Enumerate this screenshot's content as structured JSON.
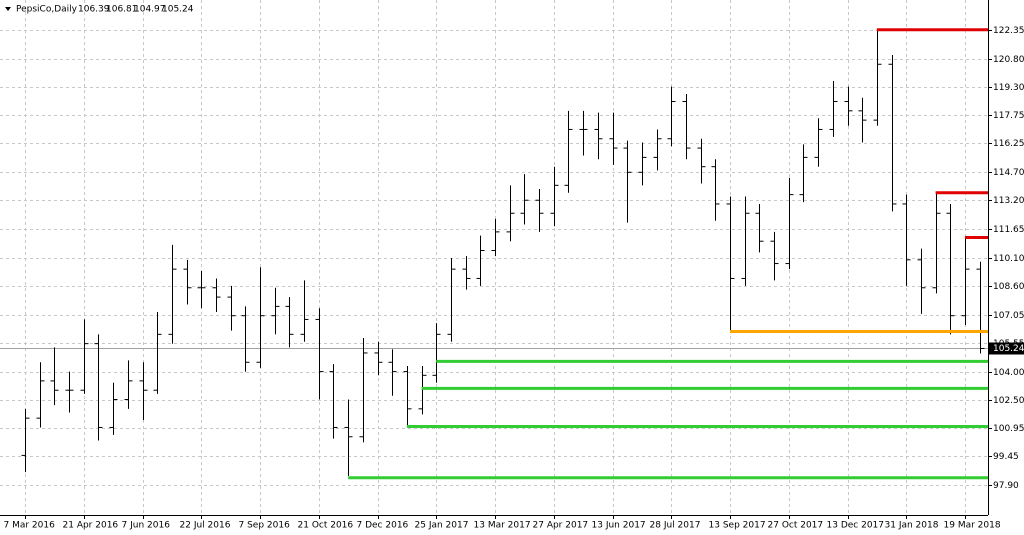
{
  "chart_data": {
    "type": "ohlc",
    "title": "PepsiCo,Daily",
    "header_values": [
      106.39,
      106.81,
      104.97,
      105.24
    ],
    "categories": [
      "7 Mar 2016",
      null,
      null,
      null,
      "21 Apr 2016",
      null,
      null,
      null,
      "7 Jun 2016",
      null,
      null,
      null,
      "22 Jul 2016",
      null,
      null,
      null,
      "7 Sep 2016",
      null,
      null,
      null,
      "21 Oct 2016",
      null,
      null,
      null,
      "7 Dec 2016",
      null,
      null,
      null,
      "25 Jan 2017",
      null,
      null,
      null,
      "13 Mar 2017",
      null,
      null,
      null,
      "27 Apr 2017",
      null,
      null,
      null,
      "13 Jun 2017",
      null,
      null,
      null,
      "28 Jul 2017",
      null,
      null,
      null,
      "13 Sep 2017",
      null,
      null,
      null,
      "27 Oct 2017",
      null,
      null,
      null,
      "13 Dec 2017",
      null,
      null,
      null,
      "31 Jan 2018",
      null,
      null,
      null,
      "19 Mar 2018",
      null
    ],
    "ohlc": [
      [
        99.5,
        102,
        98.6,
        101.5
      ],
      [
        101.5,
        104.5,
        101,
        103.5
      ],
      [
        103.5,
        105.3,
        102.2,
        103
      ],
      [
        103,
        104,
        101.8,
        103
      ],
      [
        103,
        106.8,
        102.8,
        105.5
      ],
      [
        105.5,
        106,
        100.3,
        101
      ],
      [
        101,
        103.4,
        100.6,
        102.5
      ],
      [
        102.5,
        104.6,
        102,
        103.5
      ],
      [
        103.5,
        104.5,
        101.4,
        103
      ],
      [
        103,
        107.2,
        102.8,
        106
      ],
      [
        106,
        110.8,
        105.5,
        109.5
      ],
      [
        109.5,
        110,
        107.6,
        108.5
      ],
      [
        108.5,
        109.4,
        107.4,
        108.5
      ],
      [
        108.5,
        109,
        107.2,
        108
      ],
      [
        108,
        108.6,
        106.2,
        107
      ],
      [
        107,
        107.5,
        104,
        104.5
      ],
      [
        104.5,
        109.6,
        104.2,
        107
      ],
      [
        107,
        108.5,
        106,
        107.5
      ],
      [
        107.5,
        108,
        105.3,
        106
      ],
      [
        106,
        108.9,
        105.6,
        106.8
      ],
      [
        106.8,
        107.4,
        102.5,
        104
      ],
      [
        104,
        104.4,
        100.4,
        101
      ],
      [
        101,
        102.5,
        98.4,
        100.5
      ],
      [
        100.5,
        105.8,
        100.2,
        105
      ],
      [
        105,
        105.6,
        103.8,
        104.5
      ],
      [
        104.5,
        105.2,
        102.7,
        104
      ],
      [
        104,
        104.3,
        101,
        102
      ],
      [
        102,
        104.3,
        101.7,
        103.8
      ],
      [
        103.8,
        106.6,
        103.4,
        106
      ],
      [
        106,
        110.1,
        105.6,
        109.5
      ],
      [
        109.5,
        110.2,
        108.4,
        109
      ],
      [
        109,
        111.3,
        108.6,
        110.5
      ],
      [
        110.5,
        112.2,
        110.2,
        111.5
      ],
      [
        111.5,
        114,
        111,
        112.5
      ],
      [
        112.5,
        114.6,
        111.9,
        113.2
      ],
      [
        113.2,
        113.8,
        111.5,
        112.5
      ],
      [
        112.5,
        115,
        111.8,
        114
      ],
      [
        114,
        118,
        113.6,
        117
      ],
      [
        117,
        118,
        115.6,
        117
      ],
      [
        117,
        117.9,
        115.4,
        116.5
      ],
      [
        116.5,
        117.9,
        115.1,
        116
      ],
      [
        116,
        116.4,
        112,
        114.7
      ],
      [
        114.7,
        116.3,
        114,
        115.5
      ],
      [
        115.5,
        117,
        114.8,
        116.5
      ],
      [
        116.5,
        119.3,
        116.1,
        118.5
      ],
      [
        118.5,
        118.9,
        115.4,
        116
      ],
      [
        116,
        116.5,
        114.1,
        115
      ],
      [
        115,
        115.4,
        112.1,
        113
      ],
      [
        113,
        113.4,
        106.2,
        109
      ],
      [
        109,
        113.4,
        108.6,
        112.5
      ],
      [
        112.5,
        113,
        110.4,
        111
      ],
      [
        111,
        111.5,
        108.9,
        109.8
      ],
      [
        109.8,
        114.4,
        109.5,
        113.5
      ],
      [
        113.5,
        116.2,
        113.1,
        115.5
      ],
      [
        115.5,
        117.6,
        115,
        117
      ],
      [
        117,
        119.6,
        116.6,
        118.5
      ],
      [
        118.5,
        119.3,
        117.2,
        118
      ],
      [
        118,
        118.7,
        116.3,
        117.5
      ],
      [
        117.5,
        122.35,
        117.2,
        120.5
      ],
      [
        120.5,
        121,
        112.6,
        113
      ],
      [
        113,
        113.5,
        108.6,
        110
      ],
      [
        110,
        110.6,
        107.1,
        108.5
      ],
      [
        108.5,
        113.6,
        108.2,
        112.5
      ],
      [
        112.5,
        113,
        106,
        107
      ],
      [
        107,
        111.2,
        106.5,
        109.5
      ],
      [
        109.5,
        109.9,
        104.97,
        105.24
      ]
    ],
    "color": "#000000",
    "levels": [
      {
        "price": 122.35,
        "color": "#e00000",
        "from_bar": 58
      },
      {
        "price": 113.6,
        "color": "#e00000",
        "from_bar": 62
      },
      {
        "price": 111.2,
        "color": "#e00000",
        "from_bar": 64
      },
      {
        "price": 106.15,
        "color": "#ffa500",
        "from_bar": 48
      },
      {
        "price": 104.55,
        "color": "#32cd32",
        "from_bar": 28
      },
      {
        "price": 103.1,
        "color": "#32cd32",
        "from_bar": 27
      },
      {
        "price": 101.05,
        "color": "#32cd32",
        "from_bar": 26
      },
      {
        "price": 98.3,
        "color": "#32cd32",
        "from_bar": 22
      }
    ],
    "ylim": [
      96.3,
      123.95
    ],
    "yticks": [
      122.35,
      {
        "value": 120.8,
        "label": "120.80"
      },
      {
        "value": 119.3,
        "label": "119.30"
      },
      117.75,
      116.25,
      {
        "value": 114.7,
        "label": "114.70"
      },
      {
        "value": 113.2,
        "label": "113.20"
      },
      111.65,
      {
        "value": 110.1,
        "label": "110.10"
      },
      {
        "value": 108.6,
        "label": "108.60"
      },
      107.05,
      105.55,
      {
        "value": 104,
        "label": "104.00"
      },
      {
        "value": 102.5,
        "label": "102.50"
      },
      100.95,
      99.45,
      {
        "value": 97.9,
        "label": "97.90"
      }
    ],
    "grid": true
  }
}
